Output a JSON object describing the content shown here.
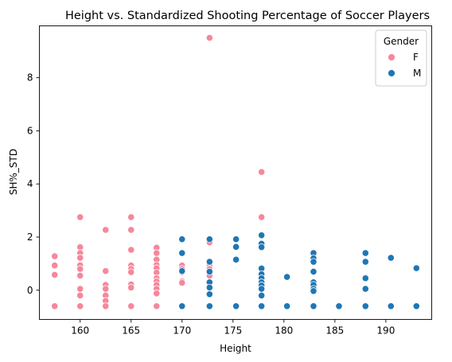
{
  "chart_data": {
    "type": "scatter",
    "title": "Height vs. Standardized Shooting Percentage of Soccer Players",
    "xlabel": "Height",
    "ylabel": "SH%_STD",
    "xlim": [
      156.0,
      194.5
    ],
    "ylim": [
      -1.1,
      9.95
    ],
    "xticks": [
      160,
      165,
      170,
      175,
      180,
      185,
      190
    ],
    "yticks": [
      0,
      2,
      4,
      6,
      8
    ],
    "grid": false,
    "legend": {
      "title": "Gender",
      "placement": "top-right"
    },
    "series": [
      {
        "name": "F",
        "color": "#f7879a",
        "points": [
          [
            157.5,
            1.28
          ],
          [
            157.5,
            0.93
          ],
          [
            157.5,
            0.58
          ],
          [
            157.5,
            -0.6
          ],
          [
            160.0,
            2.75
          ],
          [
            160.0,
            1.62
          ],
          [
            160.0,
            1.4
          ],
          [
            160.0,
            1.22
          ],
          [
            160.0,
            0.94
          ],
          [
            160.0,
            0.8
          ],
          [
            160.0,
            0.55
          ],
          [
            160.0,
            0.05
          ],
          [
            160.0,
            -0.2
          ],
          [
            160.0,
            -0.6
          ],
          [
            162.5,
            2.27
          ],
          [
            162.5,
            0.72
          ],
          [
            162.5,
            0.2
          ],
          [
            162.5,
            0.05
          ],
          [
            162.5,
            -0.2
          ],
          [
            162.5,
            -0.4
          ],
          [
            162.5,
            -0.6
          ],
          [
            165.0,
            2.75
          ],
          [
            165.0,
            2.27
          ],
          [
            165.0,
            1.52
          ],
          [
            165.0,
            0.93
          ],
          [
            165.0,
            0.8
          ],
          [
            165.0,
            0.68
          ],
          [
            165.0,
            0.22
          ],
          [
            165.0,
            0.1
          ],
          [
            165.0,
            -0.6
          ],
          [
            167.5,
            1.6
          ],
          [
            167.5,
            1.4
          ],
          [
            167.5,
            1.15
          ],
          [
            167.5,
            0.95
          ],
          [
            167.5,
            0.83
          ],
          [
            167.5,
            0.66
          ],
          [
            167.5,
            0.45
          ],
          [
            167.5,
            0.33
          ],
          [
            167.5,
            0.2
          ],
          [
            167.5,
            0.05
          ],
          [
            167.5,
            -0.12
          ],
          [
            167.5,
            -0.6
          ],
          [
            170.0,
            0.93
          ],
          [
            170.0,
            0.8
          ],
          [
            170.0,
            0.68
          ],
          [
            170.0,
            0.33
          ],
          [
            170.0,
            0.28
          ],
          [
            172.7,
            9.5
          ],
          [
            172.7,
            1.8
          ],
          [
            172.7,
            0.93
          ],
          [
            172.7,
            0.8
          ],
          [
            172.7,
            0.68
          ],
          [
            172.7,
            0.55
          ],
          [
            177.8,
            4.45
          ],
          [
            177.8,
            2.75
          ]
        ]
      },
      {
        "name": "M",
        "color": "#1f77b4",
        "points": [
          [
            170.0,
            1.92
          ],
          [
            170.0,
            1.4
          ],
          [
            170.0,
            0.72
          ],
          [
            170.0,
            -0.6
          ],
          [
            172.7,
            1.92
          ],
          [
            172.7,
            1.07
          ],
          [
            172.7,
            0.7
          ],
          [
            172.7,
            0.3
          ],
          [
            172.7,
            0.1
          ],
          [
            172.7,
            -0.15
          ],
          [
            172.7,
            -0.6
          ],
          [
            175.3,
            1.92
          ],
          [
            175.3,
            1.63
          ],
          [
            175.3,
            1.15
          ],
          [
            175.3,
            -0.6
          ],
          [
            177.8,
            2.07
          ],
          [
            177.8,
            1.75
          ],
          [
            177.8,
            1.62
          ],
          [
            177.8,
            0.82
          ],
          [
            177.8,
            0.6
          ],
          [
            177.8,
            0.45
          ],
          [
            177.8,
            0.3
          ],
          [
            177.8,
            0.18
          ],
          [
            177.8,
            0.05
          ],
          [
            177.8,
            -0.2
          ],
          [
            177.8,
            -0.6
          ],
          [
            180.3,
            0.5
          ],
          [
            180.3,
            -0.6
          ],
          [
            182.9,
            1.4
          ],
          [
            182.9,
            1.2
          ],
          [
            182.9,
            1.07
          ],
          [
            182.9,
            0.7
          ],
          [
            182.9,
            0.3
          ],
          [
            182.9,
            0.2
          ],
          [
            182.9,
            0.05
          ],
          [
            182.9,
            -0.03
          ],
          [
            182.9,
            -0.6
          ],
          [
            185.4,
            -0.6
          ],
          [
            188.0,
            1.4
          ],
          [
            188.0,
            1.07
          ],
          [
            188.0,
            0.45
          ],
          [
            188.0,
            0.05
          ],
          [
            188.0,
            -0.6
          ],
          [
            190.5,
            1.22
          ],
          [
            190.5,
            -0.6
          ],
          [
            193.0,
            0.83
          ],
          [
            193.0,
            -0.6
          ]
        ]
      }
    ]
  }
}
